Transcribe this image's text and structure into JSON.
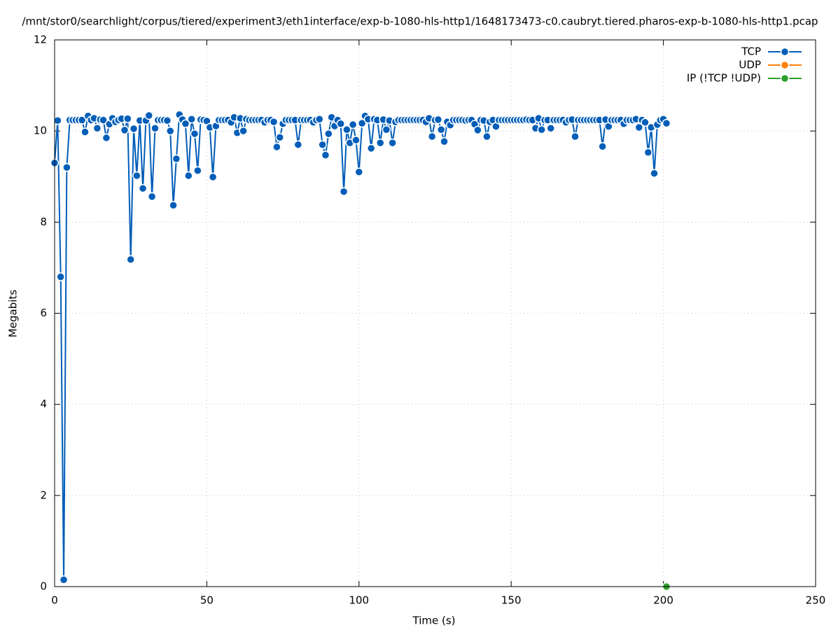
{
  "chart_data": {
    "type": "line",
    "title": "/mnt/stor0/searchlight/corpus/tiered/experiment3/eth1interface/exp-b-1080-hls-http1/1648173473-c0.caubryt.tiered.pharos-exp-b-1080-hls-http1.pcap",
    "x_label": "Time (s)",
    "y_label": "Megabits",
    "xlim": [
      0,
      250
    ],
    "xticks": [
      0,
      50,
      100,
      150,
      200,
      250
    ],
    "ylim": [
      0,
      12
    ],
    "yticks": [
      0,
      2,
      4,
      6,
      8,
      10,
      12
    ],
    "grid": true,
    "legend": "top-right",
    "series": [
      {
        "name": "TCP",
        "color": "#005db8",
        "x": [
          0,
          1,
          2,
          3,
          4,
          5,
          6,
          7,
          8,
          9,
          10,
          11,
          12,
          13,
          14,
          15,
          16,
          17,
          18,
          19,
          20,
          21,
          22,
          23,
          24,
          25,
          26,
          27,
          28,
          29,
          30,
          31,
          32,
          33,
          34,
          35,
          36,
          37,
          38,
          39,
          40,
          41,
          42,
          43,
          44,
          45,
          46,
          47,
          48,
          49,
          50,
          51,
          52,
          53,
          54,
          55,
          56,
          57,
          58,
          59,
          60,
          61,
          62,
          63,
          64,
          65,
          66,
          67,
          68,
          69,
          70,
          71,
          72,
          73,
          74,
          75,
          76,
          77,
          78,
          79,
          80,
          81,
          82,
          83,
          84,
          85,
          86,
          87,
          88,
          89,
          90,
          91,
          92,
          93,
          94,
          95,
          96,
          97,
          98,
          99,
          100,
          101,
          102,
          103,
          104,
          105,
          106,
          107,
          108,
          109,
          110,
          111,
          112,
          113,
          114,
          115,
          116,
          117,
          118,
          119,
          120,
          121,
          122,
          123,
          124,
          125,
          126,
          127,
          128,
          129,
          130,
          131,
          132,
          133,
          134,
          135,
          136,
          137,
          138,
          139,
          140,
          141,
          142,
          143,
          144,
          145,
          146,
          147,
          148,
          149,
          150,
          151,
          152,
          153,
          154,
          155,
          156,
          157,
          158,
          159,
          160,
          161,
          162,
          163,
          164,
          165,
          166,
          167,
          168,
          169,
          170,
          171,
          172,
          173,
          174,
          175,
          176,
          177,
          178,
          179,
          180,
          181,
          182,
          183,
          184,
          185,
          186,
          187,
          188,
          189,
          190,
          191,
          192,
          193,
          194,
          195,
          196,
          197,
          198,
          199,
          200,
          201
        ],
        "values": [
          9.3,
          10.23,
          6.8,
          0.15,
          9.2,
          10.24,
          10.24,
          10.24,
          10.24,
          10.24,
          9.98,
          10.33,
          10.24,
          10.28,
          10.06,
          10.25,
          10.24,
          9.85,
          10.15,
          10.28,
          10.2,
          10.24,
          10.27,
          10.02,
          10.27,
          7.18,
          10.05,
          9.02,
          10.23,
          8.74,
          10.23,
          10.34,
          8.56,
          10.06,
          10.24,
          10.24,
          10.24,
          10.23,
          10.0,
          8.37,
          9.39,
          10.36,
          10.25,
          10.16,
          9.02,
          10.26,
          9.94,
          9.13,
          10.25,
          10.24,
          10.22,
          10.08,
          8.99,
          10.11,
          10.24,
          10.24,
          10.24,
          10.24,
          10.19,
          10.3,
          9.96,
          10.28,
          10.0,
          10.26,
          10.24,
          10.24,
          10.24,
          10.24,
          10.24,
          10.19,
          10.24,
          10.24,
          10.2,
          9.65,
          9.86,
          10.16,
          10.24,
          10.24,
          10.24,
          10.24,
          9.7,
          10.24,
          10.24,
          10.24,
          10.24,
          10.19,
          10.24,
          10.26,
          9.7,
          9.47,
          9.94,
          10.3,
          10.11,
          10.24,
          10.16,
          8.67,
          10.03,
          9.74,
          10.14,
          9.8,
          9.1,
          10.17,
          10.33,
          10.26,
          9.62,
          10.26,
          10.24,
          9.74,
          10.25,
          10.03,
          10.23,
          9.74,
          10.2,
          10.24,
          10.24,
          10.24,
          10.24,
          10.24,
          10.24,
          10.24,
          10.24,
          10.24,
          10.2,
          10.28,
          9.88,
          10.24,
          10.25,
          10.03,
          9.77,
          10.2,
          10.13,
          10.24,
          10.24,
          10.24,
          10.24,
          10.23,
          10.24,
          10.24,
          10.15,
          10.02,
          10.24,
          10.23,
          9.88,
          10.2,
          10.24,
          10.1,
          10.24,
          10.24,
          10.24,
          10.24,
          10.24,
          10.24,
          10.24,
          10.24,
          10.24,
          10.25,
          10.24,
          10.24,
          10.06,
          10.28,
          10.03,
          10.24,
          10.24,
          10.06,
          10.24,
          10.24,
          10.24,
          10.24,
          10.19,
          10.24,
          10.25,
          9.88,
          10.24,
          10.24,
          10.24,
          10.24,
          10.24,
          10.24,
          10.24,
          10.24,
          9.66,
          10.25,
          10.1,
          10.24,
          10.24,
          10.24,
          10.24,
          10.16,
          10.24,
          10.24,
          10.24,
          10.26,
          10.08,
          10.24,
          10.19,
          9.53,
          10.08,
          9.07,
          10.14,
          10.24,
          10.26,
          10.17
        ]
      },
      {
        "name": "UDP",
        "color": "#ff7f0e",
        "x": [],
        "values": []
      },
      {
        "name": "IP (!TCP  !UDP)",
        "color": "#2ca02c",
        "x": [
          201
        ],
        "values": [
          0
        ]
      }
    ]
  }
}
